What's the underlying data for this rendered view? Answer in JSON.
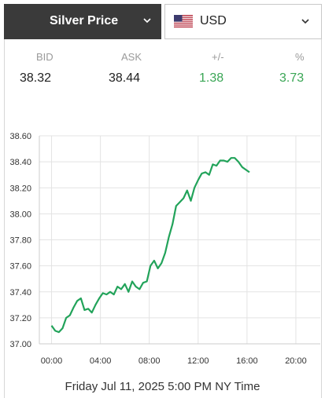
{
  "selector": {
    "metal_label": "Silver Price",
    "currency_label": "USD"
  },
  "quote": {
    "headers": [
      "BID",
      "ASK",
      "+/-",
      "%"
    ],
    "values": [
      "38.32",
      "38.44",
      "1.38",
      "3.73"
    ],
    "change_color": "#3aa655"
  },
  "chart_data": {
    "type": "line",
    "title": "",
    "xlabel": "",
    "ylabel": "",
    "x_tick_labels": [
      "00:00",
      "04:00",
      "08:00",
      "12:00",
      "16:00",
      "20:00"
    ],
    "y_tick_labels": [
      "37.00",
      "37.20",
      "37.40",
      "37.60",
      "37.80",
      "38.00",
      "38.20",
      "38.40",
      "38.60"
    ],
    "xlim": [
      -1,
      22
    ],
    "ylim": [
      37.0,
      38.6
    ],
    "grid": true,
    "line_color": "#22a35a",
    "series": [
      {
        "x": [
          0.0,
          0.3,
          0.6,
          0.9,
          1.2,
          1.5,
          1.8,
          2.1,
          2.4,
          2.7,
          3.0,
          3.3,
          3.6,
          3.9,
          4.2,
          4.5,
          4.8,
          5.1,
          5.4,
          5.7,
          6.0,
          6.3,
          6.6,
          6.9,
          7.2,
          7.5,
          7.8,
          8.1,
          8.4,
          8.7,
          9.0,
          9.3,
          9.6,
          9.9,
          10.2,
          10.5,
          10.8,
          11.1,
          11.4,
          11.7,
          12.0,
          12.3,
          12.6,
          12.9,
          13.2,
          13.5,
          13.8,
          14.1,
          14.4,
          14.7,
          15.0,
          15.3,
          15.6,
          15.9,
          16.2
        ],
        "y": [
          37.14,
          37.1,
          37.09,
          37.12,
          37.2,
          37.22,
          37.28,
          37.33,
          37.35,
          37.26,
          37.27,
          37.24,
          37.3,
          37.35,
          37.39,
          37.38,
          37.4,
          37.38,
          37.44,
          37.42,
          37.46,
          37.4,
          37.48,
          37.44,
          37.42,
          37.47,
          37.48,
          37.6,
          37.64,
          37.58,
          37.62,
          37.7,
          37.82,
          37.92,
          38.06,
          38.09,
          38.12,
          38.18,
          38.1,
          38.2,
          38.26,
          38.31,
          38.32,
          38.3,
          38.38,
          38.37,
          38.41,
          38.41,
          38.4,
          38.43,
          38.43,
          38.4,
          38.36,
          38.34,
          38.32
        ]
      }
    ]
  },
  "footer": {
    "timestamp": "Friday Jul 11, 2025 5:00 PM NY Time"
  }
}
